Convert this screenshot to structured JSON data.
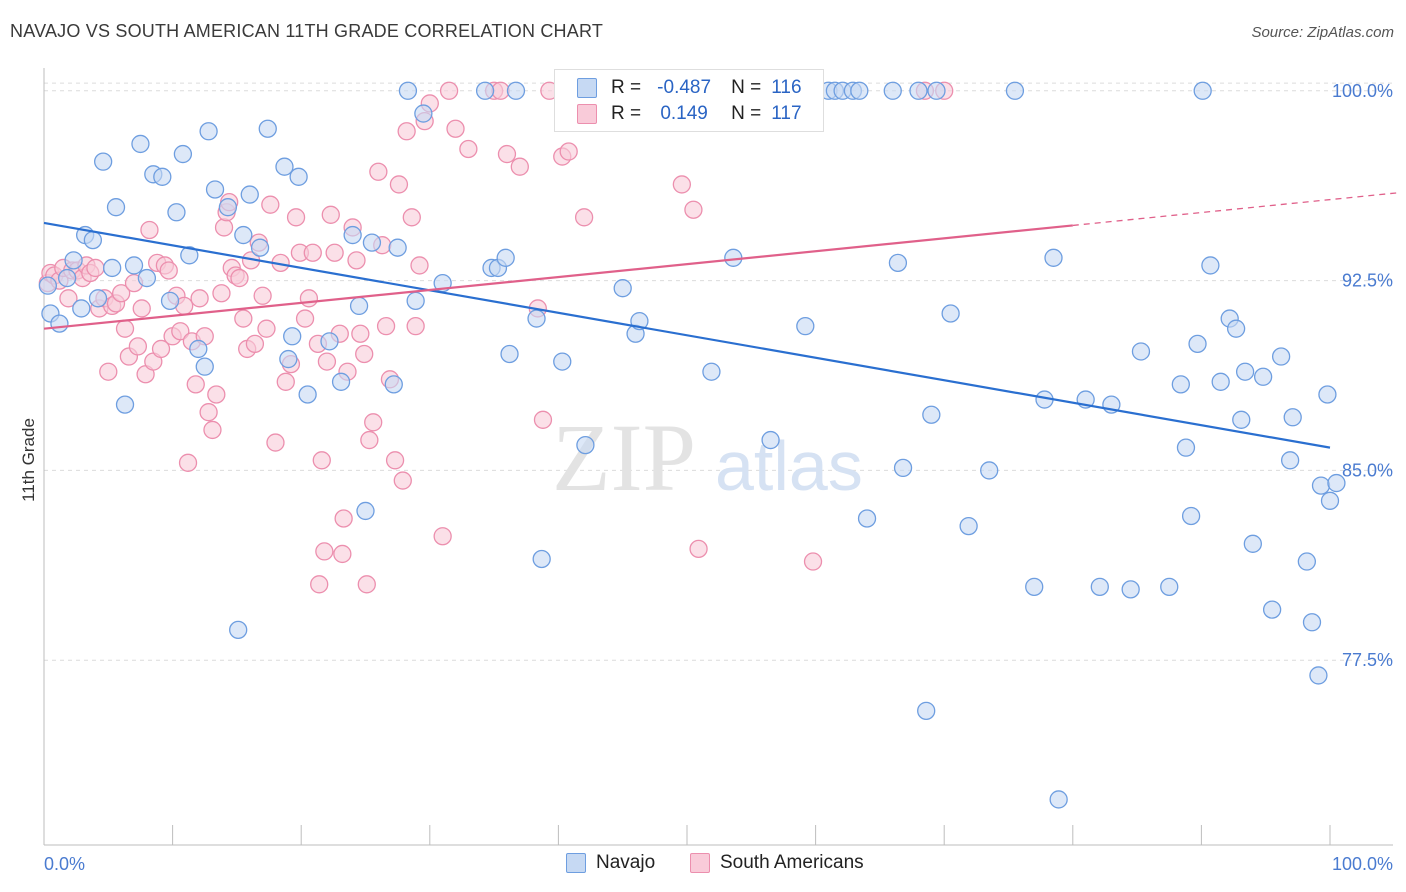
{
  "header": {
    "title": "NAVAJO VS SOUTH AMERICAN 11TH GRADE CORRELATION CHART",
    "source": "Source: ZipAtlas.com"
  },
  "watermark": {
    "zip": "ZIP",
    "atlas": "atlas"
  },
  "legend": {
    "rows": [
      {
        "r_label": "R =",
        "r_value": "-0.487",
        "n_label": "N =",
        "n_value": "116"
      },
      {
        "r_label": "R =",
        "r_value": "0.149",
        "n_label": "N =",
        "n_value": "117"
      }
    ]
  },
  "bottom_legend": {
    "navajo": "Navajo",
    "south_americans": "South Americans"
  },
  "colors": {
    "navajo_fill": "#c6d9f3",
    "navajo_stroke": "#6e9ee0",
    "navajo_line": "#2a6fd0",
    "sa_fill": "#f9cbd9",
    "sa_stroke": "#ec8fae",
    "sa_line": "#e0608a",
    "grid": "#dcdcdc",
    "axis_label": "#4a7bd0"
  },
  "chart_data": {
    "type": "scatter",
    "title": "NAVAJO VS SOUTH AMERICAN 11TH GRADE CORRELATION CHART",
    "xlabel": "",
    "ylabel": "11th Grade",
    "xlim": [
      0,
      100
    ],
    "ylim": [
      70.2,
      100.9
    ],
    "x_tick_labels": [
      "0.0%",
      "100.0%"
    ],
    "y_ticks": [
      100.0,
      92.5,
      85.0,
      77.5
    ],
    "y_tick_labels": [
      "100.0%",
      "92.5%",
      "85.0%",
      "77.5%"
    ],
    "series": [
      {
        "name": "Navajo",
        "R": -0.487,
        "N": 116,
        "trend": {
          "x": [
            0,
            100
          ],
          "y": [
            94.7,
            85.9
          ],
          "dashed_from": null
        },
        "points": [
          [
            0.3,
            92.3
          ],
          [
            0.5,
            91.2
          ],
          [
            1.2,
            90.8
          ],
          [
            1.8,
            92.6
          ],
          [
            2.3,
            93.3
          ],
          [
            2.9,
            91.4
          ],
          [
            3.2,
            94.3
          ],
          [
            3.8,
            94.1
          ],
          [
            4.2,
            91.8
          ],
          [
            4.6,
            97.2
          ],
          [
            5.3,
            93.0
          ],
          [
            5.6,
            95.4
          ],
          [
            6.3,
            87.6
          ],
          [
            7.0,
            93.1
          ],
          [
            7.5,
            97.9
          ],
          [
            8.0,
            92.6
          ],
          [
            8.5,
            96.7
          ],
          [
            9.2,
            96.6
          ],
          [
            9.8,
            91.7
          ],
          [
            10.3,
            95.2
          ],
          [
            10.8,
            97.5
          ],
          [
            11.3,
            93.5
          ],
          [
            12.0,
            89.8
          ],
          [
            12.5,
            89.1
          ],
          [
            12.8,
            98.4
          ],
          [
            13.3,
            96.1
          ],
          [
            14.3,
            95.4
          ],
          [
            15.1,
            78.7
          ],
          [
            15.5,
            94.3
          ],
          [
            16.0,
            95.9
          ],
          [
            16.8,
            93.8
          ],
          [
            17.4,
            98.5
          ],
          [
            18.7,
            97.0
          ],
          [
            19.0,
            89.4
          ],
          [
            19.3,
            90.3
          ],
          [
            19.8,
            96.6
          ],
          [
            20.5,
            88.0
          ],
          [
            22.2,
            90.1
          ],
          [
            23.1,
            88.5
          ],
          [
            24.0,
            94.3
          ],
          [
            24.5,
            91.5
          ],
          [
            25.0,
            83.4
          ],
          [
            25.5,
            94.0
          ],
          [
            27.2,
            88.4
          ],
          [
            27.5,
            93.8
          ],
          [
            28.3,
            100.0
          ],
          [
            28.9,
            91.7
          ],
          [
            29.5,
            99.1
          ],
          [
            31.0,
            92.4
          ],
          [
            34.3,
            100.0
          ],
          [
            34.8,
            93.0
          ],
          [
            35.3,
            93.0
          ],
          [
            35.9,
            93.4
          ],
          [
            36.2,
            89.6
          ],
          [
            36.7,
            100.0
          ],
          [
            38.3,
            91.0
          ],
          [
            38.7,
            81.5
          ],
          [
            40.3,
            89.3
          ],
          [
            42.1,
            86.0
          ],
          [
            45.0,
            92.2
          ],
          [
            46.0,
            90.4
          ],
          [
            46.3,
            90.9
          ],
          [
            51.9,
            88.9
          ],
          [
            53.6,
            93.4
          ],
          [
            56.5,
            86.2
          ],
          [
            59.2,
            90.7
          ],
          [
            61.0,
            100.0
          ],
          [
            61.5,
            100.0
          ],
          [
            62.1,
            100.0
          ],
          [
            62.9,
            100.0
          ],
          [
            63.4,
            100.0
          ],
          [
            64.0,
            83.1
          ],
          [
            66.0,
            100.0
          ],
          [
            66.4,
            93.2
          ],
          [
            66.8,
            85.1
          ],
          [
            68.0,
            100.0
          ],
          [
            68.6,
            75.5
          ],
          [
            69.0,
            87.2
          ],
          [
            69.4,
            100.0
          ],
          [
            70.5,
            91.2
          ],
          [
            71.9,
            82.8
          ],
          [
            73.5,
            85.0
          ],
          [
            75.5,
            100.0
          ],
          [
            77.0,
            80.4
          ],
          [
            77.8,
            87.8
          ],
          [
            78.5,
            93.4
          ],
          [
            78.9,
            72.0
          ],
          [
            81.0,
            87.8
          ],
          [
            82.1,
            80.4
          ],
          [
            83.0,
            87.6
          ],
          [
            84.5,
            80.3
          ],
          [
            85.3,
            89.7
          ],
          [
            87.5,
            80.4
          ],
          [
            88.4,
            88.4
          ],
          [
            88.8,
            85.9
          ],
          [
            89.2,
            83.2
          ],
          [
            89.7,
            90.0
          ],
          [
            90.1,
            100.0
          ],
          [
            90.7,
            93.1
          ],
          [
            91.5,
            88.5
          ],
          [
            92.2,
            91.0
          ],
          [
            92.7,
            90.6
          ],
          [
            93.1,
            87.0
          ],
          [
            93.4,
            88.9
          ],
          [
            94.0,
            82.1
          ],
          [
            94.8,
            88.7
          ],
          [
            95.5,
            79.5
          ],
          [
            96.2,
            89.5
          ],
          [
            96.9,
            85.4
          ],
          [
            97.1,
            87.1
          ],
          [
            98.2,
            81.4
          ],
          [
            98.6,
            79.0
          ],
          [
            99.1,
            76.9
          ],
          [
            99.3,
            84.4
          ],
          [
            99.8,
            88.0
          ],
          [
            100.0,
            83.8
          ],
          [
            100.5,
            84.5
          ]
        ]
      },
      {
        "name": "South Americans",
        "R": 0.149,
        "N": 117,
        "trend": {
          "x": [
            0,
            100
          ],
          "y": [
            90.6,
            95.7
          ],
          "dashed_from": 80
        },
        "points": [
          [
            0.3,
            92.4
          ],
          [
            0.5,
            92.8
          ],
          [
            0.8,
            92.7
          ],
          [
            1.2,
            92.5
          ],
          [
            1.5,
            93.0
          ],
          [
            1.9,
            91.8
          ],
          [
            2.2,
            92.9
          ],
          [
            2.6,
            92.9
          ],
          [
            3.0,
            92.6
          ],
          [
            3.3,
            93.1
          ],
          [
            3.6,
            92.8
          ],
          [
            4.0,
            93.0
          ],
          [
            4.3,
            91.4
          ],
          [
            4.7,
            91.8
          ],
          [
            5.0,
            88.9
          ],
          [
            5.3,
            91.5
          ],
          [
            5.6,
            91.6
          ],
          [
            6.0,
            92.0
          ],
          [
            6.3,
            90.6
          ],
          [
            6.6,
            89.5
          ],
          [
            7.0,
            92.4
          ],
          [
            7.3,
            89.9
          ],
          [
            7.6,
            91.4
          ],
          [
            7.9,
            88.8
          ],
          [
            8.2,
            94.5
          ],
          [
            8.5,
            89.3
          ],
          [
            8.8,
            93.2
          ],
          [
            9.1,
            89.8
          ],
          [
            9.4,
            93.1
          ],
          [
            9.7,
            92.9
          ],
          [
            10.0,
            90.3
          ],
          [
            10.3,
            91.9
          ],
          [
            10.6,
            90.5
          ],
          [
            10.9,
            91.5
          ],
          [
            11.2,
            85.3
          ],
          [
            11.5,
            90.1
          ],
          [
            11.8,
            88.4
          ],
          [
            12.1,
            91.8
          ],
          [
            12.5,
            90.3
          ],
          [
            12.8,
            87.3
          ],
          [
            13.1,
            86.6
          ],
          [
            13.4,
            88.0
          ],
          [
            13.8,
            92.0
          ],
          [
            14.0,
            94.6
          ],
          [
            14.2,
            95.2
          ],
          [
            14.4,
            95.6
          ],
          [
            14.6,
            93.0
          ],
          [
            14.9,
            92.7
          ],
          [
            15.2,
            92.6
          ],
          [
            15.5,
            91.0
          ],
          [
            15.8,
            89.8
          ],
          [
            16.1,
            93.3
          ],
          [
            16.4,
            90.0
          ],
          [
            16.7,
            94.0
          ],
          [
            17.0,
            91.9
          ],
          [
            17.3,
            90.6
          ],
          [
            17.6,
            95.5
          ],
          [
            18.0,
            86.1
          ],
          [
            18.4,
            93.2
          ],
          [
            18.8,
            88.5
          ],
          [
            19.2,
            89.2
          ],
          [
            19.6,
            95.0
          ],
          [
            19.9,
            93.6
          ],
          [
            20.3,
            91.0
          ],
          [
            20.6,
            91.8
          ],
          [
            20.9,
            93.6
          ],
          [
            21.3,
            90.0
          ],
          [
            21.6,
            85.4
          ],
          [
            22.0,
            89.3
          ],
          [
            22.3,
            95.1
          ],
          [
            22.6,
            93.6
          ],
          [
            23.0,
            90.4
          ],
          [
            23.3,
            83.1
          ],
          [
            23.6,
            88.9
          ],
          [
            24.0,
            94.6
          ],
          [
            24.3,
            93.3
          ],
          [
            24.6,
            90.4
          ],
          [
            24.9,
            89.6
          ],
          [
            25.3,
            86.2
          ],
          [
            25.6,
            86.9
          ],
          [
            26.0,
            96.8
          ],
          [
            26.3,
            93.9
          ],
          [
            26.6,
            90.7
          ],
          [
            26.9,
            88.6
          ],
          [
            27.3,
            85.4
          ],
          [
            27.6,
            96.3
          ],
          [
            27.9,
            84.6
          ],
          [
            28.2,
            98.4
          ],
          [
            28.6,
            95.0
          ],
          [
            28.9,
            90.7
          ],
          [
            29.2,
            93.1
          ],
          [
            29.6,
            98.8
          ],
          [
            30.0,
            99.5
          ],
          [
            31.0,
            82.4
          ],
          [
            31.5,
            100.0
          ],
          [
            32.0,
            98.5
          ],
          [
            33.0,
            97.7
          ],
          [
            35.0,
            100.0
          ],
          [
            35.5,
            100.0
          ],
          [
            36.0,
            97.5
          ],
          [
            37.0,
            97.0
          ],
          [
            38.4,
            91.4
          ],
          [
            38.8,
            87.0
          ],
          [
            39.3,
            100.0
          ],
          [
            40.3,
            97.4
          ],
          [
            40.8,
            97.6
          ],
          [
            42.0,
            95.0
          ],
          [
            49.6,
            96.3
          ],
          [
            50.5,
            95.3
          ],
          [
            50.9,
            81.9
          ],
          [
            59.8,
            81.4
          ],
          [
            68.5,
            100.0
          ],
          [
            70.0,
            100.0
          ],
          [
            21.8,
            81.8
          ],
          [
            23.2,
            81.7
          ],
          [
            21.4,
            80.5
          ],
          [
            25.1,
            80.5
          ]
        ]
      }
    ]
  }
}
